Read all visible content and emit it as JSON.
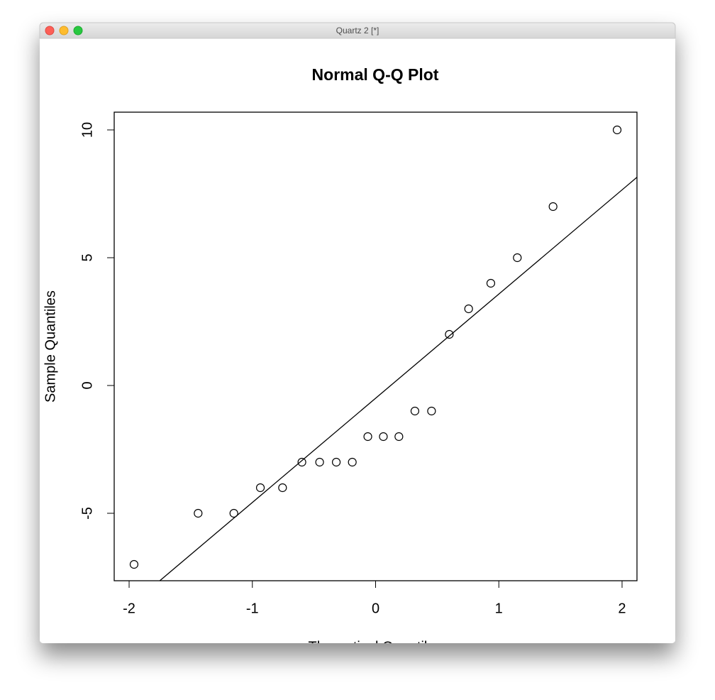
{
  "window": {
    "title": "Quartz 2 [*]"
  },
  "chart_data": {
    "type": "scatter",
    "title": "Normal Q-Q Plot",
    "x_label": "Theoretical Quantiles",
    "y_label": "Sample Quantiles",
    "x": [
      -1.96,
      -1.44,
      -1.15,
      -0.935,
      -0.755,
      -0.598,
      -0.454,
      -0.319,
      -0.189,
      -0.063,
      0.063,
      0.189,
      0.319,
      0.454,
      0.598,
      0.755,
      0.935,
      1.15,
      1.44,
      1.96
    ],
    "values": [
      -7,
      -5,
      -5,
      -4,
      -4,
      -3,
      -3,
      -3,
      -3,
      -2,
      -2,
      -2,
      -1,
      -1,
      2,
      3,
      4,
      5,
      7,
      10
    ],
    "color": "#000000",
    "reference_line": {
      "slope": 4.077,
      "intercept": -0.5
    },
    "xlim": [
      -2.121,
      2.121
    ],
    "ylim": [
      -7.639,
      10.694
    ],
    "xticks": [
      -2,
      -1,
      0,
      1,
      2
    ],
    "yticks": [
      -5,
      0,
      5,
      10
    ]
  }
}
